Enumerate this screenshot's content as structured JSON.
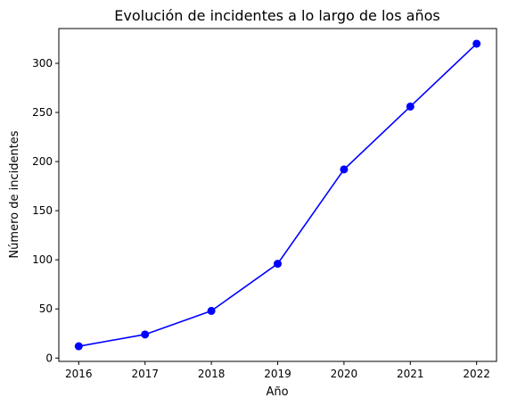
{
  "chart_data": {
    "type": "line",
    "title": "Evolución de incidentes a lo largo de los años",
    "xlabel": "Año",
    "ylabel": "Número de incidentes",
    "x": [
      2016,
      2017,
      2018,
      2019,
      2020,
      2021,
      2022
    ],
    "y": [
      12,
      24,
      48,
      96,
      192,
      256,
      320
    ],
    "xlim": [
      2015.7,
      2022.3
    ],
    "ylim": [
      -3.4,
      335.4
    ],
    "xticks": [
      2016,
      2017,
      2018,
      2019,
      2020,
      2021,
      2022
    ],
    "yticks": [
      0,
      50,
      100,
      150,
      200,
      250,
      300
    ],
    "grid": false,
    "line_color": "#0000ff",
    "marker": "circle"
  }
}
